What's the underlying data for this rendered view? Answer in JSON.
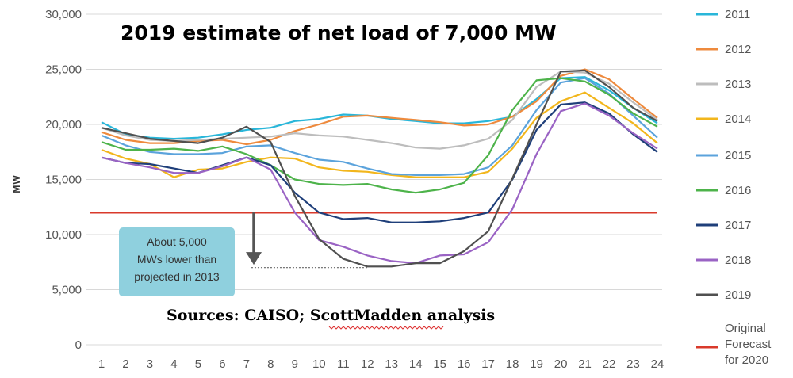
{
  "chart_data": {
    "type": "line",
    "title": "2019 estimate of net load of 7,000 MW",
    "ylabel": "MW",
    "xlabel": "",
    "x": [
      1,
      2,
      3,
      4,
      5,
      6,
      7,
      8,
      9,
      10,
      11,
      12,
      13,
      14,
      15,
      16,
      17,
      18,
      19,
      20,
      21,
      22,
      23,
      24
    ],
    "ylim": [
      0,
      30000
    ],
    "yticks": [
      0,
      5000,
      10000,
      15000,
      20000,
      25000,
      30000
    ],
    "ytick_labels": [
      "0",
      "5,000",
      "10,000",
      "15,000",
      "20,000",
      "25,000",
      "30,000"
    ],
    "xtick_labels": [
      "1",
      "2",
      "3",
      "4",
      "5",
      "6",
      "7",
      "8",
      "9",
      "10",
      "11",
      "12",
      "13",
      "14",
      "15",
      "16",
      "17",
      "18",
      "19",
      "20",
      "21",
      "22",
      "23",
      "24"
    ],
    "grid": "horizontal",
    "legend_position": "right",
    "series": [
      {
        "name": "2011",
        "color": "#29b6d9",
        "values": [
          20200,
          19100,
          18800,
          18700,
          18800,
          19100,
          19500,
          19700,
          20300,
          20500,
          20900,
          20800,
          20500,
          20300,
          20100,
          20100,
          20300,
          20700,
          22300,
          24200,
          24300,
          23100,
          21500,
          20100
        ]
      },
      {
        "name": "2012",
        "color": "#ee8a3d",
        "values": [
          19300,
          18600,
          18300,
          18300,
          18500,
          18600,
          18200,
          18600,
          19400,
          20000,
          20700,
          20800,
          20600,
          20400,
          20200,
          19900,
          20000,
          20700,
          22100,
          24400,
          25000,
          24100,
          22300,
          20600
        ]
      },
      {
        "name": "2013",
        "color": "#bdbdbd",
        "values": [
          19700,
          19000,
          18600,
          18500,
          18600,
          18700,
          18800,
          18900,
          19200,
          19000,
          18900,
          18600,
          18300,
          17900,
          17800,
          18100,
          18700,
          20400,
          23400,
          24800,
          24700,
          23700,
          22000,
          20400
        ]
      },
      {
        "name": "2014",
        "color": "#f2b61c",
        "values": [
          17700,
          16900,
          16400,
          15200,
          15900,
          16000,
          16600,
          17000,
          16900,
          16100,
          15800,
          15700,
          15400,
          15200,
          15200,
          15200,
          15700,
          17800,
          20600,
          22100,
          22900,
          21500,
          20100,
          18300
        ]
      },
      {
        "name": "2015",
        "color": "#5ba3dc",
        "values": [
          19000,
          18100,
          17500,
          17300,
          17300,
          17400,
          18000,
          18100,
          17400,
          16800,
          16600,
          16000,
          15500,
          15400,
          15400,
          15500,
          16100,
          18100,
          21300,
          23800,
          24200,
          22800,
          20800,
          18800
        ]
      },
      {
        "name": "2016",
        "color": "#4db34a",
        "values": [
          18400,
          17700,
          17700,
          17800,
          17600,
          18000,
          17300,
          16300,
          15000,
          14600,
          14500,
          14600,
          14100,
          13800,
          14100,
          14700,
          17200,
          21300,
          24000,
          24200,
          23900,
          22700,
          21000,
          19800
        ]
      },
      {
        "name": "2017",
        "color": "#1f3f7a",
        "values": [
          17000,
          16500,
          16400,
          16000,
          15600,
          16300,
          17000,
          16300,
          13800,
          12000,
          11400,
          11500,
          11100,
          11100,
          11200,
          11500,
          12000,
          15000,
          19500,
          21800,
          22000,
          21000,
          19100,
          17500
        ]
      },
      {
        "name": "2018",
        "color": "#9a63c4",
        "values": [
          17000,
          16500,
          16100,
          15600,
          15600,
          16200,
          17000,
          15900,
          12000,
          9500,
          8900,
          8100,
          7600,
          7400,
          8100,
          8200,
          9300,
          12300,
          17300,
          21200,
          21900,
          20800,
          19200,
          17800
        ]
      },
      {
        "name": "2019",
        "color": "#505050",
        "values": [
          19700,
          19200,
          18700,
          18500,
          18300,
          18800,
          19800,
          18400,
          13500,
          9600,
          7800,
          7100,
          7100,
          7400,
          7400,
          8500,
          10300,
          15100,
          20000,
          24800,
          24900,
          23400,
          21500,
          20300
        ]
      }
    ],
    "reference_line": {
      "name": "Original Forecast for 2020",
      "color": "#d93a2b",
      "value": 12000
    },
    "annotations": {
      "callout_lines": [
        "About 5,000",
        "MWs lower than",
        "projected in 2013"
      ],
      "callout_color": "#8fd0de",
      "sources": "Sources: CAISO; ScottMadden analysis",
      "dotted_level": 7000,
      "dotted_from_x": 7.2,
      "dotted_to_x": 12,
      "arrow_x": 7.3,
      "arrow_from": 12000,
      "arrow_to": 7400
    }
  }
}
